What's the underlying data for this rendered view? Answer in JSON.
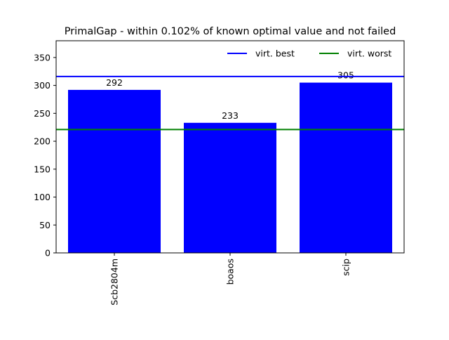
{
  "chart_data": {
    "type": "bar",
    "title": "PrimalGap - within 0.102% of known optimal value and not failed",
    "categories": [
      "Scb2804m",
      "boaos",
      "scip"
    ],
    "values": [
      292,
      233,
      305
    ],
    "bar_color": "#0000ff",
    "ylim": [
      0,
      380
    ],
    "yticks": [
      0,
      50,
      100,
      150,
      200,
      250,
      300,
      350
    ],
    "grid": false,
    "reference_lines": [
      {
        "name": "virt. best",
        "value": 316,
        "color": "#0000ff"
      },
      {
        "name": "virt. worst",
        "value": 221,
        "color": "#008000"
      }
    ],
    "legend_position": "top-right",
    "xtick_rotation": "vertical"
  }
}
